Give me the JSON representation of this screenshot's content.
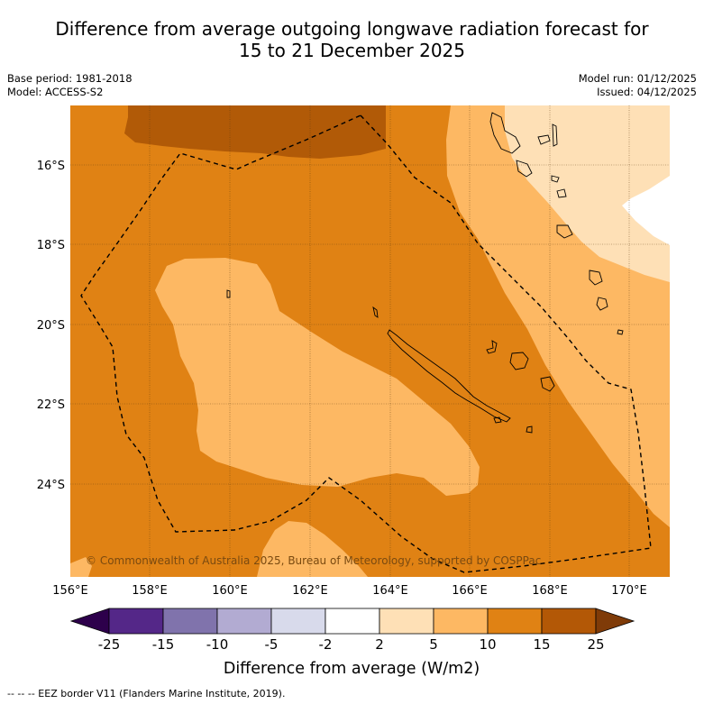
{
  "title": {
    "line1": "Difference from average outgoing longwave radiation forecast for",
    "line2": "15 to 21 December 2025"
  },
  "meta": {
    "base_period": "Base period: 1981-2018",
    "model": "Model: ACCESS-S2",
    "model_run": "Model run: 01/12/2025",
    "issued": "Issued: 04/12/2025"
  },
  "map": {
    "lat_labels": [
      "16°S",
      "18°S",
      "20°S",
      "22°S",
      "24°S"
    ],
    "lon_labels": [
      "156°E",
      "158°E",
      "160°E",
      "162°E",
      "164°E",
      "166°E",
      "168°E",
      "170°E"
    ],
    "copyright": "© Commonwealth of Australia 2025, Bureau of Meteorology, supported by COSPPac",
    "colors": {
      "band_15_25": "#b15a07",
      "band_10_15": "#e08214",
      "band_5_10": "#fdb863",
      "band_2_5": "#fee0b6",
      "band_neutral": "#ffffff"
    }
  },
  "colorbar": {
    "ticks": [
      "-25",
      "-15",
      "-10",
      "-5",
      "-2",
      "2",
      "5",
      "10",
      "15",
      "25"
    ],
    "colors": [
      "#2d004b",
      "#542788",
      "#8073ac",
      "#b2abd2",
      "#d8daeb",
      "#ffffff",
      "#fee0b6",
      "#fdb863",
      "#e08214",
      "#b35806",
      "#7f3b08"
    ],
    "label": "Difference from average (W/m2)"
  },
  "footnote": "-- -- -- EEZ border V11 (Flanders Marine Institute, 2019)."
}
